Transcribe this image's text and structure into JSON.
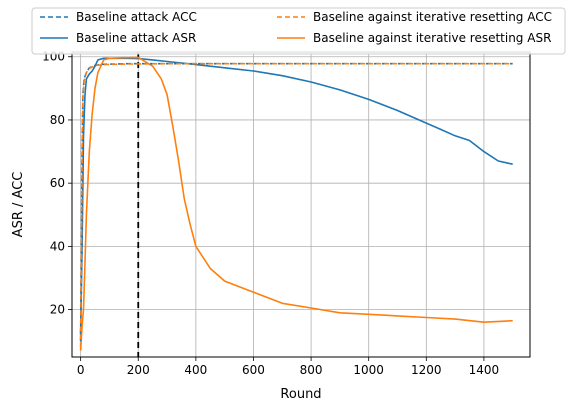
{
  "chart_data": {
    "type": "line",
    "title": "",
    "xlabel": "Round",
    "ylabel": "ASR / ACC",
    "xlim": [
      -30,
      1560
    ],
    "ylim": [
      5,
      101.5
    ],
    "xticks": [
      0,
      200,
      400,
      600,
      800,
      1000,
      1200,
      1400
    ],
    "yticks": [
      20,
      40,
      60,
      80,
      100
    ],
    "grid": true,
    "legend_position": "top (above plot, 2 columns)",
    "vline": {
      "x": 200,
      "style": "dashed",
      "color": "#000000"
    },
    "series": [
      {
        "name": "Baseline attack ACC",
        "color": "#1f77b4",
        "dash": true,
        "x": [
          0,
          2,
          5,
          8,
          12,
          20,
          30,
          50,
          80,
          120,
          160,
          200,
          300,
          400,
          600,
          800,
          1000,
          1200,
          1400,
          1500
        ],
        "y": [
          10,
          35,
          70,
          88,
          93,
          95,
          96.5,
          97.3,
          97.6,
          97.7,
          97.8,
          97.8,
          97.8,
          97.8,
          97.8,
          97.8,
          97.8,
          97.8,
          97.8,
          97.8
        ]
      },
      {
        "name": "Baseline attack ASR",
        "color": "#1f77b4",
        "dash": false,
        "x": [
          0,
          5,
          10,
          15,
          20,
          30,
          40,
          50,
          60,
          80,
          120,
          160,
          200,
          250,
          300,
          400,
          500,
          600,
          700,
          800,
          900,
          1000,
          1100,
          1200,
          1250,
          1300,
          1350,
          1400,
          1450,
          1500
        ],
        "y": [
          12,
          40,
          75,
          88,
          93,
          94.5,
          95.5,
          97,
          99,
          99.5,
          99.5,
          99.5,
          99.4,
          99,
          98.5,
          97.5,
          96.5,
          95.5,
          94,
          92,
          89.5,
          86.5,
          83,
          79,
          77,
          75,
          73.5,
          70,
          67,
          66
        ]
      },
      {
        "name": "Baseline against iterative resetting ACC",
        "color": "#ff7f0e",
        "dash": true,
        "x": [
          0,
          2,
          5,
          8,
          12,
          20,
          30,
          50,
          80,
          120,
          160,
          200,
          300,
          400,
          600,
          800,
          1000,
          1200,
          1400,
          1500
        ],
        "y": [
          8,
          30,
          68,
          87,
          92.5,
          95,
          96.3,
          97.2,
          97.5,
          97.6,
          97.7,
          97.7,
          97.8,
          97.8,
          97.8,
          97.8,
          97.8,
          97.8,
          97.8,
          97.8
        ]
      },
      {
        "name": "Baseline against iterative resetting ASR",
        "color": "#ff7f0e",
        "dash": false,
        "x": [
          0,
          5,
          10,
          15,
          20,
          30,
          40,
          50,
          60,
          80,
          100,
          150,
          200,
          250,
          280,
          300,
          320,
          340,
          360,
          380,
          400,
          450,
          500,
          600,
          700,
          800,
          900,
          1000,
          1100,
          1200,
          1300,
          1400,
          1500
        ],
        "y": [
          7,
          15,
          20,
          35,
          50,
          70,
          82,
          90,
          95,
          99,
          99.5,
          99.7,
          99.8,
          97,
          93,
          88,
          78,
          67,
          55,
          47,
          40,
          33,
          29,
          25.5,
          22,
          20.5,
          19,
          18.5,
          18,
          17.5,
          17,
          16,
          16.5
        ]
      }
    ]
  }
}
